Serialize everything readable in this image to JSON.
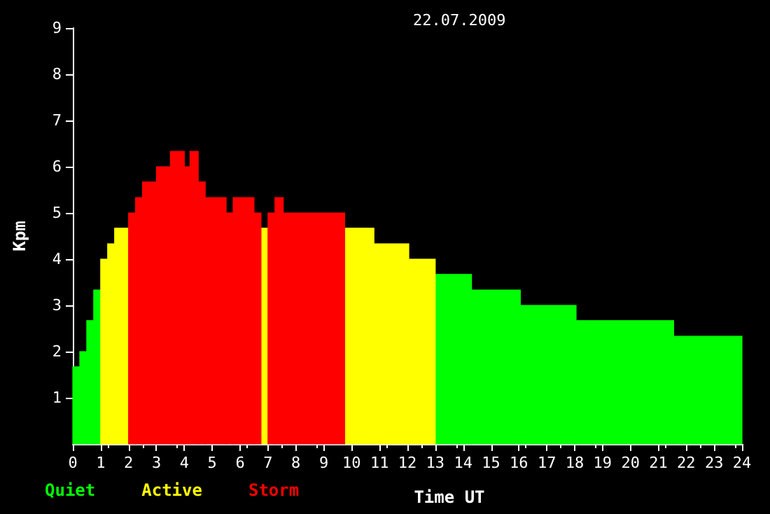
{
  "chart_data": {
    "type": "histogram",
    "title": "22.07.2009",
    "xlabel": "Time UT",
    "ylabel": "Kpm",
    "bins": [
      0,
      0.25,
      0.5,
      0.75,
      1,
      1.25,
      1.5,
      2,
      2.25,
      2.5,
      3,
      3.5,
      4,
      4.2,
      4.5,
      4.75,
      5.5,
      5.75,
      6.5,
      6.75,
      7,
      7.25,
      7.55,
      9.75,
      10.8,
      12.05,
      13,
      14.3,
      16.05,
      18.05,
      21.55,
      24
    ],
    "series": [
      {
        "name": "Quiet",
        "color": "#00ff00",
        "values": [
          1.67,
          2,
          2.67,
          3.33,
          null,
          null,
          null,
          null,
          null,
          null,
          null,
          null,
          null,
          null,
          null,
          null,
          null,
          null,
          null,
          null,
          null,
          null,
          null,
          null,
          null,
          null,
          3.67,
          3.33,
          3,
          2.67,
          2.33
        ]
      },
      {
        "name": "Active",
        "color": "#ffff00",
        "values": [
          null,
          null,
          null,
          null,
          4,
          4.33,
          4.67,
          null,
          null,
          null,
          null,
          null,
          null,
          null,
          null,
          null,
          null,
          null,
          null,
          4.67,
          null,
          null,
          null,
          4.67,
          4.33,
          4,
          null,
          null,
          null,
          null,
          null
        ]
      },
      {
        "name": "Storm",
        "color": "#ff0000",
        "values": [
          null,
          null,
          null,
          null,
          null,
          null,
          null,
          5,
          5.33,
          5.67,
          6,
          6.33,
          6,
          6.33,
          5.67,
          5.33,
          5,
          5.33,
          5,
          null,
          5,
          5.33,
          5,
          null,
          null,
          null,
          null,
          null,
          null,
          null,
          null
        ]
      }
    ],
    "xlim": [
      0,
      24
    ],
    "xticks": [
      0,
      1,
      2,
      3,
      4,
      5,
      6,
      7,
      8,
      9,
      10,
      11,
      12,
      13,
      14,
      15,
      16,
      17,
      18,
      19,
      20,
      21,
      22,
      23,
      24
    ],
    "ylim": [
      0,
      9
    ],
    "yticks": [
      1,
      2,
      3,
      4,
      5,
      6,
      7,
      8,
      9
    ],
    "grid": false,
    "legend": "bottom left"
  }
}
